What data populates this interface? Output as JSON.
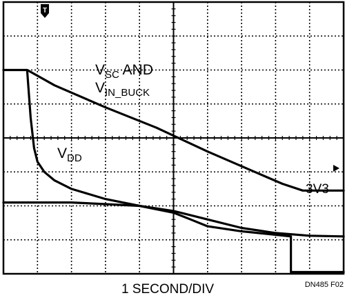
{
  "chart_data": {
    "type": "line",
    "title": "",
    "xlabel": "1 SECOND/DIV",
    "ylabel": "",
    "figure_id": "DN485 F02",
    "x_unit": "s",
    "xlim": [
      0,
      10
    ],
    "ylim": [
      0,
      8
    ],
    "grid": true,
    "trigger_marker": "T",
    "labels": {
      "vsc_main": "V",
      "vsc_sub": "SC",
      "vsc_and": " AND",
      "vin_main": "V",
      "vin_sub": "IN_BUCK",
      "vdd_main": "V",
      "vdd_sub": "DD",
      "v3v3": "3V3"
    },
    "series": [
      {
        "name": "VSC AND VIN_BUCK",
        "x": [
          0,
          0.7,
          1.5,
          3,
          4.5,
          6,
          7.5,
          8.2,
          8.8,
          9.5,
          10
        ],
        "y": [
          6.0,
          6.0,
          5.55,
          4.9,
          4.3,
          3.6,
          2.95,
          2.65,
          2.45,
          2.45,
          2.45
        ]
      },
      {
        "name": "VDD",
        "x": [
          0.7,
          0.8,
          0.9,
          1.0,
          1.2,
          1.5,
          2,
          3,
          4,
          5,
          6,
          7,
          8,
          9,
          10
        ],
        "y": [
          5.95,
          4.6,
          3.7,
          3.3,
          3.0,
          2.75,
          2.5,
          2.2,
          2.0,
          1.85,
          1.6,
          1.35,
          1.2,
          1.12,
          1.1
        ]
      },
      {
        "name": "3V3",
        "x": [
          0,
          1,
          2,
          3,
          4,
          5,
          5.5,
          6,
          7,
          8,
          8.45,
          8.45,
          9,
          10
        ],
        "y": [
          2.1,
          2.1,
          2.1,
          2.05,
          2.0,
          1.8,
          1.6,
          1.4,
          1.25,
          1.15,
          1.1,
          0.05,
          0.05,
          0.05
        ]
      }
    ]
  }
}
